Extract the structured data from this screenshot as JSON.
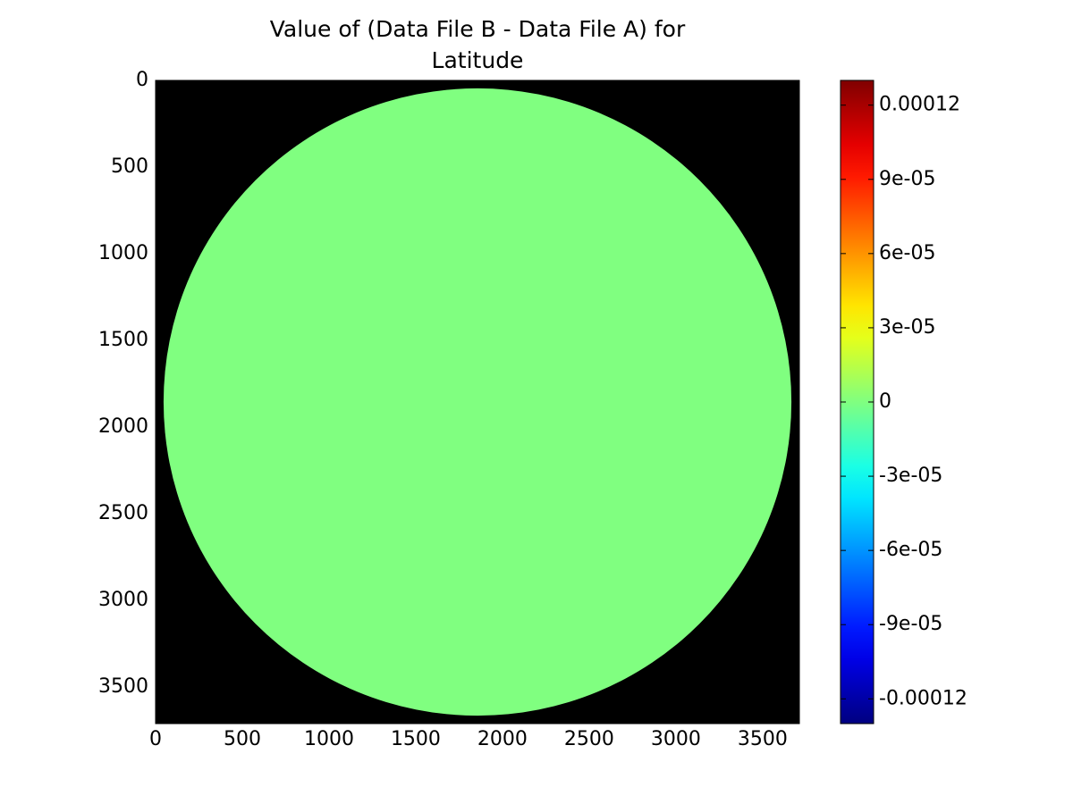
{
  "chart_data": {
    "type": "image",
    "title": [
      "Value of (Data File B - Data File A) for",
      "Latitude"
    ],
    "xlim": [
      0,
      3712
    ],
    "ylim": [
      3712,
      0
    ],
    "xticks": [
      0,
      500,
      1000,
      1500,
      2000,
      2500,
      3000,
      3500
    ],
    "yticks": [
      0,
      500,
      1000,
      1500,
      2000,
      2500,
      3000,
      3500
    ],
    "background_color": "#000000",
    "colormap": "jet",
    "disc": {
      "cx": 1856,
      "cy": 1856,
      "r": 1810,
      "value": 0
    },
    "clim": [
      -0.00013,
      0.00013
    ],
    "cticks": [
      {
        "value": -0.00012,
        "label": "-0.00012"
      },
      {
        "value": -9e-05,
        "label": "-9e-05"
      },
      {
        "value": -6e-05,
        "label": "-6e-05"
      },
      {
        "value": -3e-05,
        "label": "-3e-05"
      },
      0,
      {
        "value": 3e-05,
        "label": "3e-05"
      },
      {
        "value": 6e-05,
        "label": "6e-05"
      },
      {
        "value": 9e-05,
        "label": "9e-05"
      },
      {
        "value": 0.00012,
        "label": "0.00012"
      }
    ]
  }
}
